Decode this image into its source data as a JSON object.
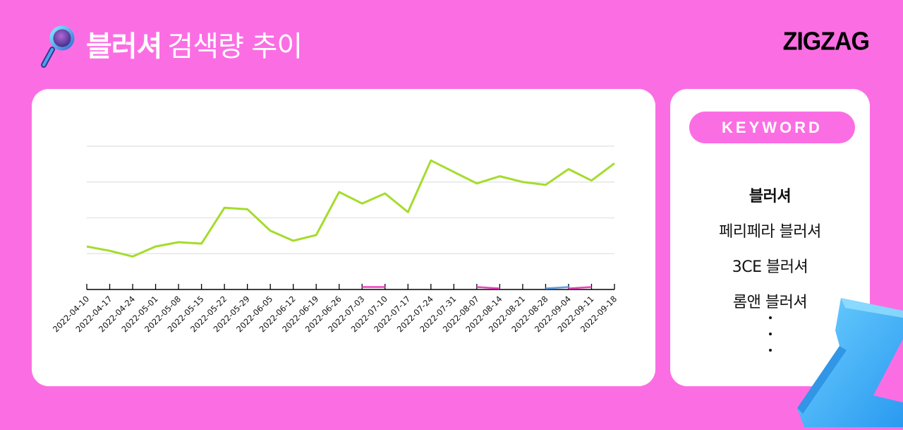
{
  "header": {
    "keyword": "블러셔",
    "title_rest": "검색량 추이",
    "logo": "ZIGZAG",
    "icon": "magnifier-icon"
  },
  "keyword_panel": {
    "badge": "KEYWORD",
    "items": [
      {
        "label": "블러셔",
        "bold": true
      },
      {
        "label": "페리페라 블러셔",
        "bold": false
      },
      {
        "label": "3CE 블러셔",
        "bold": false
      },
      {
        "label": "롬앤 블러셔",
        "bold": false
      }
    ],
    "more_indicator": "⋮"
  },
  "colors": {
    "background": "#fb6ee3",
    "card": "#ffffff",
    "series_main": "#a4dc2c",
    "series_2": "#ee3fc0",
    "series_3": "#5b9ef0",
    "grid": "#e6e6e6",
    "axis": "#000000"
  },
  "chart_data": {
    "type": "line",
    "title": "블러셔 검색량 추이",
    "xlabel": "",
    "ylabel": "",
    "ylim": [
      0,
      100
    ],
    "y_gridlines": [
      25,
      50,
      75,
      100
    ],
    "y_tick_labels_visible": false,
    "grid": true,
    "legend": "none (keywords listed in side panel)",
    "x": [
      "2022-04-10",
      "2022-04-17",
      "2022-04-24",
      "2022-05-01",
      "2022-05-08",
      "2022-05-15",
      "2022-05-22",
      "2022-05-29",
      "2022-06-05",
      "2022-06-12",
      "2022-06-19",
      "2022-06-26",
      "2022-07-03",
      "2022-07-10",
      "2022-07-17",
      "2022-07-24",
      "2022-07-31",
      "2022-08-07",
      "2022-08-14",
      "2022-08-21",
      "2022-08-28",
      "2022-09-04",
      "2022-09-11",
      "2022-09-18"
    ],
    "series": [
      {
        "name": "블러셔",
        "color": "#a4dc2c",
        "values": [
          30,
          27,
          23,
          30,
          33,
          32,
          57,
          56,
          41,
          34,
          38,
          68,
          60,
          67,
          54,
          90,
          82,
          74,
          79,
          75,
          73,
          84,
          76,
          88
        ]
      },
      {
        "name": "pink series (near zero)",
        "color": "#ee3fc0",
        "values": [
          null,
          null,
          null,
          null,
          null,
          null,
          null,
          null,
          null,
          null,
          null,
          null,
          1,
          1,
          null,
          null,
          null,
          1,
          0,
          null,
          null,
          0,
          1,
          null
        ]
      },
      {
        "name": "blue series (near zero)",
        "color": "#5b9ef0",
        "values": [
          null,
          null,
          null,
          null,
          null,
          null,
          null,
          null,
          null,
          null,
          null,
          null,
          null,
          null,
          null,
          null,
          null,
          null,
          null,
          null,
          0,
          1,
          null,
          null
        ]
      }
    ]
  }
}
